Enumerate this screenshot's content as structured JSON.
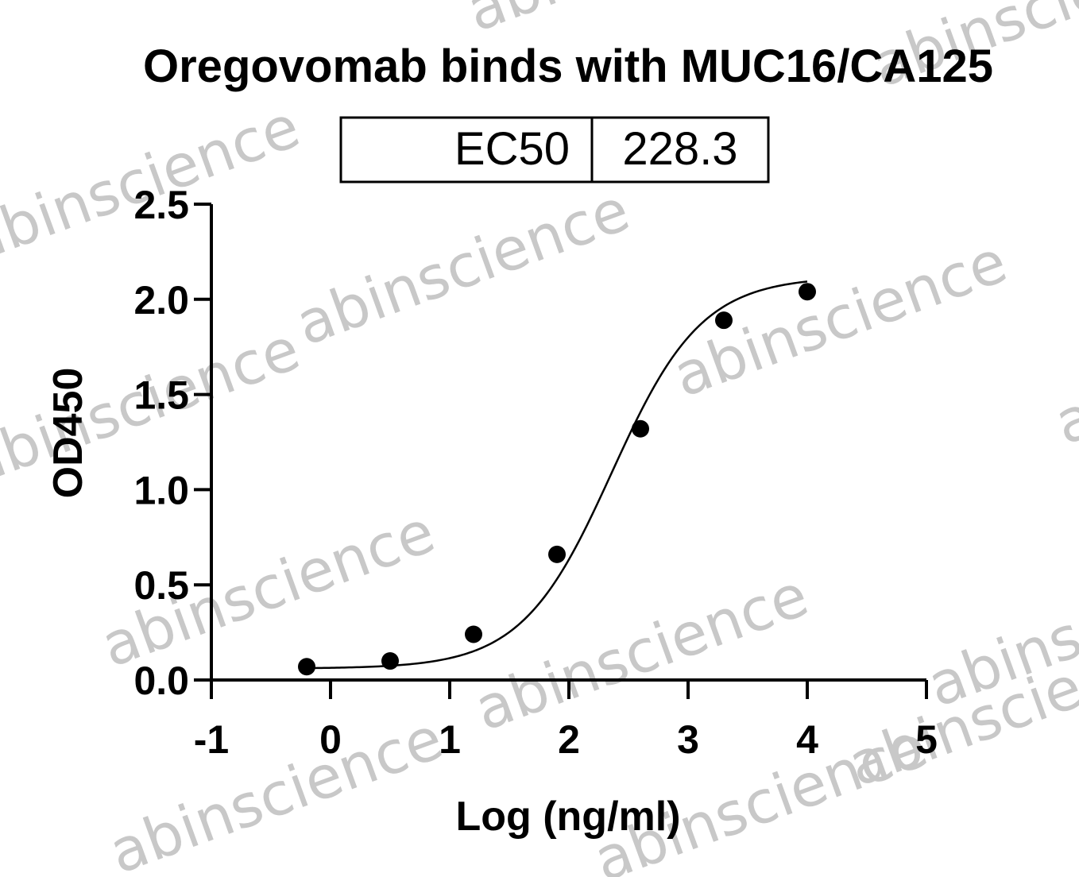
{
  "watermark_text": "abinscience",
  "chart_data": {
    "type": "scatter",
    "title": "Oregovomab binds with MUC16/CA125",
    "xlabel": "Log (ng/ml)",
    "ylabel": "OD450",
    "xlim": [
      -1,
      5
    ],
    "ylim": [
      0,
      2.5
    ],
    "x_ticks": [
      "-1",
      "0",
      "1",
      "2",
      "3",
      "4",
      "5"
    ],
    "y_ticks": [
      "0.0",
      "0.5",
      "1.0",
      "1.5",
      "2.0",
      "2.5"
    ],
    "grid": false,
    "fit": "4-parameter logistic curve",
    "table": {
      "header": "EC50",
      "value": "228.3"
    },
    "series": [
      {
        "points": [
          {
            "x": -0.2,
            "y": 0.07
          },
          {
            "x": 0.5,
            "y": 0.1
          },
          {
            "x": 1.2,
            "y": 0.24
          },
          {
            "x": 1.9,
            "y": 0.66
          },
          {
            "x": 2.6,
            "y": 1.32
          },
          {
            "x": 3.3,
            "y": 1.89
          },
          {
            "x": 4.0,
            "y": 2.04
          }
        ]
      }
    ]
  }
}
